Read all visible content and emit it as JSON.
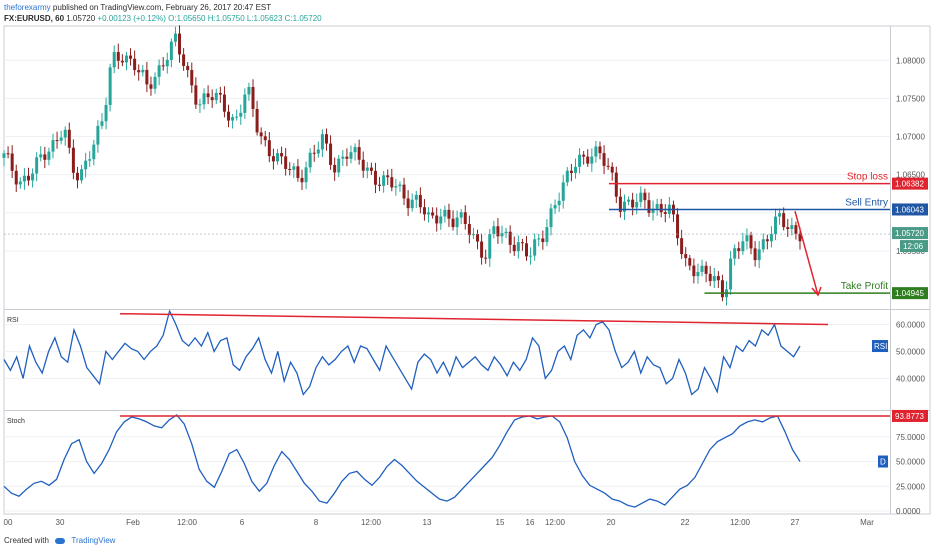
{
  "header": {
    "author": "theforexarmy",
    "published": "published on TradingView.com, February 26, 2017 20:47 EST",
    "symbol": "FX:EURUSD, 60",
    "price": "1.05720",
    "change": "+0.00123 (+0.12%)",
    "ohlc": "O:1.05650 H:1.05750 L:1.05623 C:1.05720"
  },
  "footer": {
    "created_with": "Created with",
    "brand": "TradingView"
  },
  "colors": {
    "up": "#26a69a",
    "down": "#8b1d1d",
    "indicator": "#1f5fbf",
    "stop": "#e0242f",
    "entry": "#1f57a5",
    "profit": "#2f7d1f",
    "grid": "#eef0f3"
  },
  "chart_data": [
    {
      "type": "candlestick",
      "title": "FX:EURUSD, 60",
      "ylim": [
        1.0475,
        1.0845
      ],
      "y_ticks": [
        "1.08000",
        "1.07500",
        "1.07000",
        "1.06500",
        "1.06000",
        "1.05500"
      ],
      "x_ticks": [
        "00",
        "30",
        "Feb",
        "12:00",
        "6",
        "8",
        "12:00",
        "13",
        "15",
        "16",
        "12:00",
        "20",
        "22",
        "12:00",
        "27",
        "Mar"
      ],
      "close_path": [
        [
          0,
          1.0672
        ],
        [
          0.02,
          1.0642
        ],
        [
          0.04,
          1.0658
        ],
        [
          0.06,
          1.0688
        ],
        [
          0.075,
          1.0718
        ],
        [
          0.085,
          1.0655
        ],
        [
          0.095,
          1.064
        ],
        [
          0.11,
          1.0692
        ],
        [
          0.125,
          1.0722
        ],
        [
          0.135,
          1.0795
        ],
        [
          0.15,
          1.081
        ],
        [
          0.165,
          1.0795
        ],
        [
          0.18,
          1.076
        ],
        [
          0.195,
          1.079
        ],
        [
          0.205,
          1.0812
        ],
        [
          0.215,
          1.0825
        ],
        [
          0.23,
          1.078
        ],
        [
          0.245,
          1.0748
        ],
        [
          0.26,
          1.0752
        ],
        [
          0.275,
          1.0742
        ],
        [
          0.29,
          1.072
        ],
        [
          0.305,
          1.076
        ],
        [
          0.32,
          1.0705
        ],
        [
          0.335,
          1.0682
        ],
        [
          0.35,
          1.0662
        ],
        [
          0.37,
          1.0648
        ],
        [
          0.385,
          1.0672
        ],
        [
          0.4,
          1.0692
        ],
        [
          0.415,
          1.0662
        ],
        [
          0.43,
          1.068
        ],
        [
          0.445,
          1.0668
        ],
        [
          0.46,
          1.0655
        ],
        [
          0.475,
          1.064
        ],
        [
          0.49,
          1.0635
        ],
        [
          0.505,
          1.0622
        ],
        [
          0.52,
          1.0615
        ],
        [
          0.535,
          1.0585
        ],
        [
          0.55,
          1.0605
        ],
        [
          0.565,
          1.0588
        ],
        [
          0.58,
          1.0585
        ],
        [
          0.595,
          1.0562
        ],
        [
          0.605,
          1.0545
        ],
        [
          0.615,
          1.0575
        ],
        [
          0.63,
          1.0568
        ],
        [
          0.645,
          1.0562
        ],
        [
          0.66,
          1.054
        ],
        [
          0.675,
          1.0568
        ],
        [
          0.69,
          1.061
        ],
        [
          0.705,
          1.0635
        ],
        [
          0.72,
          1.0672
        ],
        [
          0.735,
          1.0678
        ],
        [
          0.75,
          1.0672
        ],
        [
          0.765,
          1.0645
        ],
        [
          0.775,
          1.0612
        ],
        [
          0.79,
          1.061
        ],
        [
          0.805,
          1.0615
        ],
        [
          0.82,
          1.0608
        ],
        [
          0.835,
          1.0602
        ],
        [
          0.845,
          1.0575
        ],
        [
          0.855,
          1.0538
        ],
        [
          0.865,
          1.0532
        ],
        [
          0.875,
          1.0518
        ],
        [
          0.885,
          1.0515
        ],
        [
          0.895,
          1.051
        ],
        [
          0.905,
          1.0498
        ],
        [
          0.915,
          1.0545
        ],
        [
          0.93,
          1.056
        ],
        [
          0.945,
          1.055
        ],
        [
          0.96,
          1.057
        ],
        [
          0.975,
          1.059
        ],
        [
          0.99,
          1.058
        ],
        [
          1.0,
          1.0575
        ]
      ],
      "levels": [
        {
          "label": "Stop loss",
          "price": 1.06382,
          "price_label": "1.06382",
          "color": "#e0242f",
          "x_start": 0.76
        },
        {
          "label": "Sell Entry",
          "price": 1.06043,
          "price_label": "1.06043",
          "color": "#1f57a5",
          "x_start": 0.76
        },
        {
          "label": "Take Profit",
          "price": 1.04945,
          "price_label": "1.04945",
          "color": "#2f7d1f",
          "x_start": 0.88
        }
      ],
      "current": {
        "price": 1.0572,
        "price_label": "1.05720",
        "countdown": "12:06"
      },
      "forecast_arrow": {
        "from_price": 1.0602,
        "to_price": 1.0492
      }
    },
    {
      "type": "line",
      "name": "RSI",
      "ylim": [
        29,
        65
      ],
      "y_ticks": [
        "60.0000",
        "50.0000",
        "40.0000"
      ],
      "values": [
        47,
        43,
        48,
        40,
        52,
        46,
        42,
        50,
        55,
        48,
        46,
        58,
        52,
        44,
        41,
        38,
        50,
        47,
        50,
        53,
        51,
        50,
        47,
        50,
        52,
        56,
        65,
        60,
        54,
        52,
        55,
        52,
        57,
        50,
        54,
        55,
        45,
        43,
        48,
        51,
        55,
        47,
        42,
        50,
        39,
        46,
        42,
        34,
        37,
        44,
        48,
        45,
        47,
        50,
        52,
        46,
        52,
        51,
        47,
        43,
        52,
        48,
        44,
        40,
        36,
        46,
        49,
        47,
        42,
        46,
        41,
        48,
        44,
        46,
        48,
        45,
        43,
        48,
        45,
        41,
        46,
        43,
        47,
        55,
        52,
        40,
        43,
        50,
        52,
        47,
        56,
        58,
        55,
        60,
        61,
        58,
        50,
        44,
        46,
        50,
        42,
        48,
        45,
        44,
        38,
        40,
        47,
        42,
        34,
        36,
        44,
        40,
        35,
        48,
        44,
        52,
        50,
        54,
        52,
        58,
        56,
        60,
        52,
        50,
        48,
        52
      ],
      "trendline": [
        64,
        60
      ]
    },
    {
      "type": "line",
      "name": "Stoch",
      "ylim": [
        -3,
        100
      ],
      "y_ticks": [
        "93.8773",
        "75.0000",
        "50.0000",
        "25.0000",
        "0.0000"
      ],
      "values": [
        25,
        18,
        15,
        22,
        28,
        30,
        26,
        32,
        52,
        68,
        72,
        50,
        38,
        48,
        62,
        80,
        90,
        95,
        93,
        90,
        86,
        84,
        92,
        97,
        88,
        68,
        42,
        30,
        24,
        40,
        58,
        62,
        48,
        30,
        20,
        28,
        46,
        60,
        52,
        40,
        28,
        20,
        10,
        8,
        18,
        30,
        38,
        40,
        32,
        26,
        34,
        45,
        52,
        46,
        38,
        30,
        24,
        18,
        12,
        10,
        14,
        22,
        30,
        38,
        46,
        54,
        66,
        80,
        92,
        95,
        96,
        93,
        95,
        96,
        90,
        74,
        50,
        36,
        26,
        22,
        18,
        12,
        10,
        6,
        4,
        8,
        12,
        10,
        6,
        14,
        22,
        26,
        34,
        48,
        62,
        70,
        74,
        78,
        86,
        90,
        92,
        90,
        94,
        96,
        80,
        62,
        50
      ],
      "trendline": [
        96,
        96
      ],
      "level_label": "93.8773"
    }
  ]
}
